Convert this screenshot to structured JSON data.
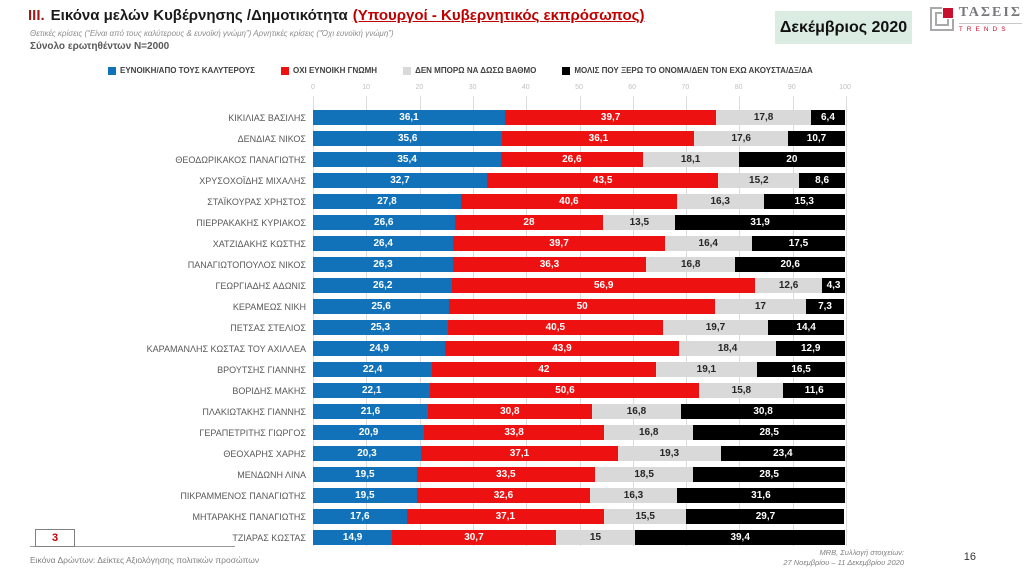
{
  "header": {
    "section_number": "III.",
    "title": "Εικόνα μελών Κυβέρνησης /Δημοτικότητα",
    "title_suffix": "(Υπουργοί - Κυβερνητικός εκπρόσωπος)",
    "subtitle": "Θετικές κρίσεις (“Είναι από τους καλύτερους & ευνοϊκή γνώμη”)  Αρνητικές κρίσεις (“Όχι ευνοϊκή γνώμη”)",
    "sample": "Σύνολο ερωτηθέντων N=2000",
    "date_badge": "Δεκέμβριος 2020",
    "logo_name": "ΤΑΣΕΙΣ",
    "logo_sub": "TRENDS"
  },
  "chart_data": {
    "type": "bar",
    "orientation": "horizontal-stacked",
    "xlim": [
      0,
      100
    ],
    "x_ticks": [
      0,
      10,
      20,
      30,
      40,
      50,
      60,
      70,
      80,
      90,
      100
    ],
    "grid": true,
    "legend_position": "top",
    "decimal_separator": ",",
    "legend": [
      {
        "label": "ΕΥΝΟΙΚΗ/ΑΠΟ ΤΟΥΣ ΚΑΛΥΤΕΡΟΥΣ",
        "color": "#1272B9"
      },
      {
        "label": "ΟΧΙ ΕΥΝΟΙΚΗ ΓΝΩΜΗ",
        "color": "#EE1111"
      },
      {
        "label": "ΔΕΝ ΜΠΟΡΩ ΝΑ ΔΩΣΩ ΒΑΘΜΟ",
        "color": "#D9D9D9"
      },
      {
        "label": "ΜΟΛΙΣ ΠΟΥ ΞΕΡΩ ΤΟ ΟΝΟΜΑ/ΔΕΝ ΤΟΝ ΕΧΩ ΑΚΟΥΣΤΑ/ΔΞ/ΔΑ",
        "color": "#000000"
      }
    ],
    "categories": [
      "ΚΙΚΙΛΙΑΣ ΒΑΣΙΛΗΣ",
      "ΔΕΝΔΙΑΣ ΝΙΚΟΣ",
      "ΘΕΟΔΩΡΙΚΑΚΟΣ ΠΑΝΑΓΙΩΤΗΣ",
      "ΧΡΥΣΟΧΟΪΔΗΣ ΜΙΧΑΛΗΣ",
      "ΣΤΑΪΚΟΥΡΑΣ ΧΡΗΣΤΟΣ",
      "ΠΙΕΡΡΑΚΑΚΗΣ ΚΥΡΙΑΚΟΣ",
      "ΧΑΤΖΙΔΑΚΗΣ ΚΩΣΤΗΣ",
      "ΠΑΝΑΓΙΩΤΟΠΟΥΛΟΣ ΝΙΚΟΣ",
      "ΓΕΩΡΓΙΑΔΗΣ ΑΔΩΝΙΣ",
      "ΚΕΡΑΜΕΩΣ ΝΙΚΗ",
      "ΠΕΤΣΑΣ ΣΤΕΛΙΟΣ",
      "ΚΑΡΑΜΑΝΛΗΣ ΚΩΣΤΑΣ ΤΟΥ ΑΧΙΛΛΕΑ",
      "ΒΡΟΥΤΣΗΣ ΓΙΑΝΝΗΣ",
      "ΒΟΡΙΔΗΣ ΜΑΚΗΣ",
      "ΠΛΑΚΙΩΤΑΚΗΣ ΓΙΑΝΝΗΣ",
      "ΓΕΡΑΠΕΤΡΙΤΗΣ ΓΙΩΡΓΟΣ",
      "ΘΕΟΧΑΡΗΣ ΧΑΡΗΣ",
      "ΜΕΝΔΩΝΗ ΛΙΝΑ",
      "ΠΙΚΡΑΜΜΕΝΟΣ ΠΑΝΑΓΙΩΤΗΣ",
      "ΜΗΤΑΡΑΚΗΣ ΠΑΝΑΓΙΩΤΗΣ",
      "ΤΖΙΑΡΑΣ ΚΩΣΤΑΣ"
    ],
    "series": [
      {
        "name": "ΕΥΝΟΙΚΗ/ΑΠΟ ΤΟΥΣ ΚΑΛΥΤΕΡΟΥΣ",
        "color": "#1272B9",
        "label_color": "#FFFFFF",
        "values": [
          36.1,
          35.6,
          35.4,
          32.7,
          27.8,
          26.6,
          26.4,
          26.3,
          26.2,
          25.6,
          25.3,
          24.9,
          22.4,
          22.1,
          21.6,
          20.9,
          20.3,
          19.5,
          19.5,
          17.6,
          14.9
        ]
      },
      {
        "name": "ΟΧΙ ΕΥΝΟΙΚΗ ΓΝΩΜΗ",
        "color": "#EE1111",
        "label_color": "#FFFFFF",
        "values": [
          39.7,
          36.1,
          26.6,
          43.5,
          40.6,
          28,
          39.7,
          36.3,
          56.9,
          50,
          40.5,
          43.9,
          42,
          50.6,
          30.8,
          33.8,
          37.1,
          33.5,
          32.6,
          37.1,
          30.7
        ]
      },
      {
        "name": "ΔΕΝ ΜΠΟΡΩ ΝΑ ΔΩΣΩ ΒΑΘΜΟ",
        "color": "#D9D9D9",
        "label_color": "#262626",
        "values": [
          17.8,
          17.6,
          18.1,
          15.2,
          16.3,
          13.5,
          16.4,
          16.8,
          12.6,
          17,
          19.7,
          18.4,
          19.1,
          15.8,
          16.8,
          16.8,
          19.3,
          18.5,
          16.3,
          15.5,
          15
        ]
      },
      {
        "name": "ΜΟΛΙΣ ΠΟΥ ΞΕΡΩ ΤΟ ΟΝΟΜΑ/ΔΕΝ ΤΟΝ ΕΧΩ ΑΚΟΥΣΤΑ/ΔΞ/ΔΑ",
        "color": "#000000",
        "label_color": "#FFFFFF",
        "values": [
          6.4,
          10.7,
          20,
          8.6,
          15.3,
          31.9,
          17.5,
          20.6,
          4.3,
          7.3,
          14.4,
          12.9,
          16.5,
          11.6,
          30.8,
          28.5,
          23.4,
          28.5,
          31.6,
          29.7,
          39.4
        ]
      }
    ]
  },
  "footer": {
    "page_box": "3",
    "left_note": "Εικόνα Δρώντων: Δείκτες Αξιολόγησης πολιτικών προσώπων",
    "right_note_line1": "MRB, Συλλογή στοιχείων:",
    "right_note_line2": "27 Νοεμβρίου – 11 Δεκεμβρίου 2020",
    "page_number": "16"
  }
}
